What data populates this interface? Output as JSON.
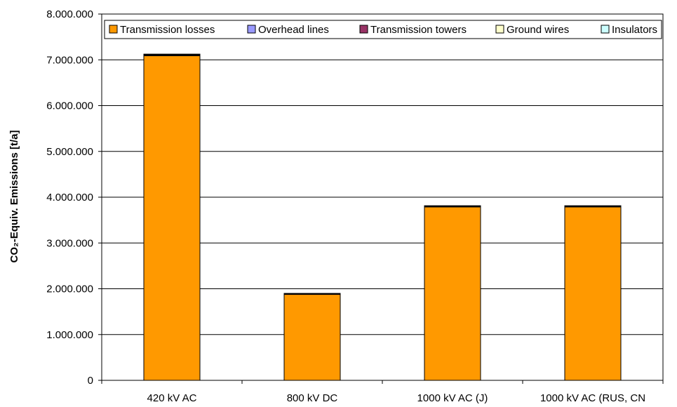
{
  "chart_data": {
    "type": "bar",
    "stacked": true,
    "title": "",
    "xlabel": "",
    "ylabel": "CO₂-Equiv. Emissions [t/a]",
    "ylim": [
      0,
      8000000
    ],
    "yticks": [
      0,
      1000000,
      2000000,
      3000000,
      4000000,
      5000000,
      6000000,
      7000000,
      8000000
    ],
    "ytick_labels": [
      "0",
      "1.000.000",
      "2.000.000",
      "3.000.000",
      "4.000.000",
      "5.000.000",
      "6.000.000",
      "7.000.000",
      "8.000.000"
    ],
    "categories": [
      "420 kV AC",
      "800 kV DC",
      "1000 kV AC (J)",
      "1000 kV AC (RUS, CN"
    ],
    "grid": true,
    "legend_position": "top",
    "series": [
      {
        "name": "Transmission losses",
        "color": "#ff9900",
        "values": [
          7090000,
          1880000,
          3790000,
          3790000
        ]
      },
      {
        "name": "Overhead lines",
        "color": "#9999ff",
        "values": [
          10000,
          5000,
          5000,
          5000
        ]
      },
      {
        "name": "Transmission towers",
        "color": "#993366",
        "values": [
          20000,
          10000,
          15000,
          15000
        ]
      },
      {
        "name": "Ground wires",
        "color": "#ffffcc",
        "values": [
          2000,
          1000,
          1000,
          1000
        ]
      },
      {
        "name": "Insulators",
        "color": "#ccffff",
        "values": [
          1000,
          1000,
          1000,
          1000
        ]
      }
    ]
  }
}
